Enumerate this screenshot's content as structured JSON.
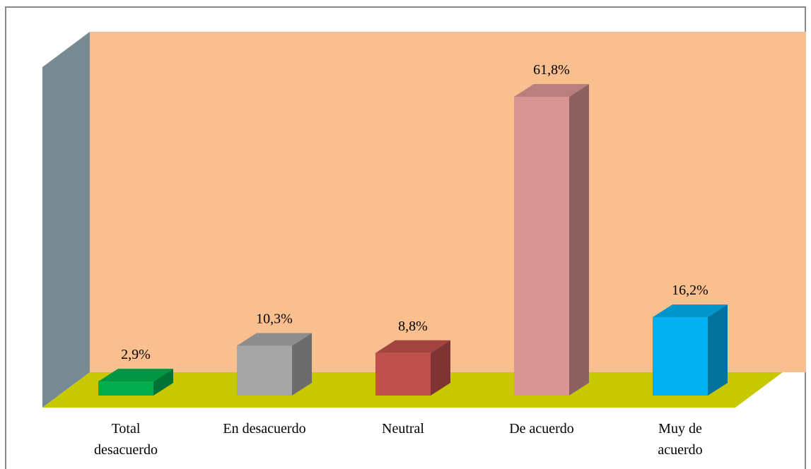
{
  "chart_data": {
    "type": "bar3d",
    "categories": [
      "Total desacuerdo",
      "En desacuerdo",
      "Neutral",
      "De acuerdo",
      "Muy de acuerdo"
    ],
    "values": [
      2.9,
      10.3,
      8.8,
      61.8,
      16.2
    ],
    "value_labels": [
      "2,9%",
      "10,3%",
      "8,8%",
      "61,8%",
      "16,2%"
    ],
    "colors": [
      "#00b050",
      "#a6a6a6",
      "#c0504d",
      "#d99594",
      "#00b0f0"
    ]
  }
}
